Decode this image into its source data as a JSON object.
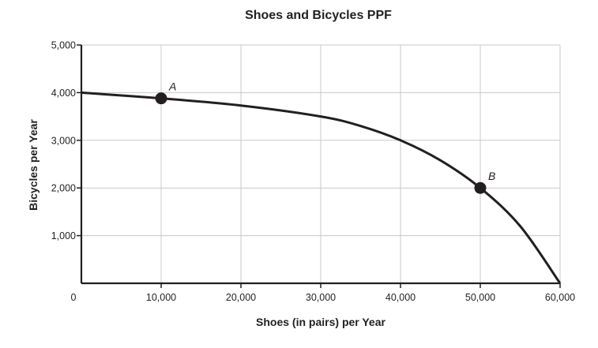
{
  "chart_data": {
    "type": "line",
    "title": "Shoes and Bicycles PPF",
    "xlabel": "Shoes (in pairs) per Year",
    "ylabel": "Bicycles per Year",
    "xlim": [
      0,
      60000
    ],
    "ylim": [
      0,
      5000
    ],
    "grid": true,
    "x_ticks": [
      {
        "value": 0,
        "label": "0"
      },
      {
        "value": 10000,
        "label": "10,000"
      },
      {
        "value": 20000,
        "label": "20,000"
      },
      {
        "value": 30000,
        "label": "30,000"
      },
      {
        "value": 40000,
        "label": "40,000"
      },
      {
        "value": 50000,
        "label": "50,000"
      },
      {
        "value": 60000,
        "label": "60,000"
      }
    ],
    "y_ticks": [
      {
        "value": 1000,
        "label": "1,000"
      },
      {
        "value": 2000,
        "label": "2,000"
      },
      {
        "value": 3000,
        "label": "3,000"
      },
      {
        "value": 4000,
        "label": "4,000"
      },
      {
        "value": 5000,
        "label": "5,000"
      }
    ],
    "curve": {
      "x": [
        0,
        10000,
        20000,
        30000,
        35000,
        40000,
        45000,
        50000,
        55000,
        60000
      ],
      "y": [
        4000,
        3880,
        3730,
        3500,
        3300,
        3000,
        2580,
        2000,
        1200,
        0
      ]
    },
    "points": [
      {
        "name": "A",
        "x": 10000,
        "y": 3880
      },
      {
        "name": "B",
        "x": 50000,
        "y": 2000
      }
    ],
    "colors": {
      "line": "#231f20",
      "grid": "#c8c8c8"
    }
  }
}
